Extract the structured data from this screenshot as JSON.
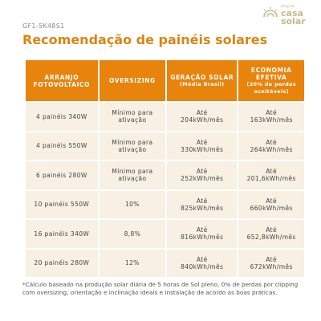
{
  "code": "GF1-5K48S1",
  "logo": {
    "top": "blog da",
    "line1": "casa",
    "line2": "solar"
  },
  "title": "Recomendação de painéis solares",
  "headers": [
    {
      "main": "ARRANJO FOTOVOLTAICO",
      "sub": ""
    },
    {
      "main": "OVERSIZING",
      "sub": ""
    },
    {
      "main": "GERAÇÃO SOLAR",
      "sub": "(Média Brasil)"
    },
    {
      "main": "ECONOMIA EFETIVA",
      "sub": "(20% de perdas aceitáveis)"
    }
  ],
  "rows": [
    {
      "arranjo": "4 painéis 340W",
      "oversizing": "Mínimo para ativação",
      "geracao_prefix": "Até",
      "geracao": "204kWh/mês",
      "economia_prefix": "Até",
      "economia": "163kWh/mês"
    },
    {
      "arranjo": "4 painéis 550W",
      "oversizing": "Mínimo para ativação",
      "geracao_prefix": "Até",
      "geracao": "330kWh/mês",
      "economia_prefix": "Até",
      "economia": "264kWh/mês"
    },
    {
      "arranjo": "6 painéis 280W",
      "oversizing": "Mínimo para ativação",
      "geracao_prefix": "Até",
      "geracao": "252kWh/mês",
      "economia_prefix": "Até",
      "economia": "201,6kWh/mês"
    },
    {
      "arranjo": "10 painéis 550W",
      "oversizing": "10%",
      "geracao_prefix": "Até",
      "geracao": "825kWh/mês",
      "economia_prefix": "Até",
      "economia": "660kWh/mês"
    },
    {
      "arranjo": "16 painéis 340W",
      "oversizing": "8,8%",
      "geracao_prefix": "Até",
      "geracao": "816kWh/mês",
      "economia_prefix": "Até",
      "economia": "652,8kWh/mês"
    },
    {
      "arranjo": "20 painéis 280W",
      "oversizing": "12%",
      "geracao_prefix": "Até",
      "geracao": "840kWh/mês",
      "economia_prefix": "Até",
      "economia": "672kWh/mês"
    }
  ],
  "footnote": "*Cálculo baseado na produção solar diária de 5 horas de Sol pleno, 0% de perdas por clipping com oversizing, orientação e inclinação ideais e instalação de acordo as boas práticas.",
  "colors": {
    "accent": "#e8830c",
    "title": "#d88610",
    "cell_bg": "#f7f0e3",
    "logo": "#c9b98a"
  }
}
